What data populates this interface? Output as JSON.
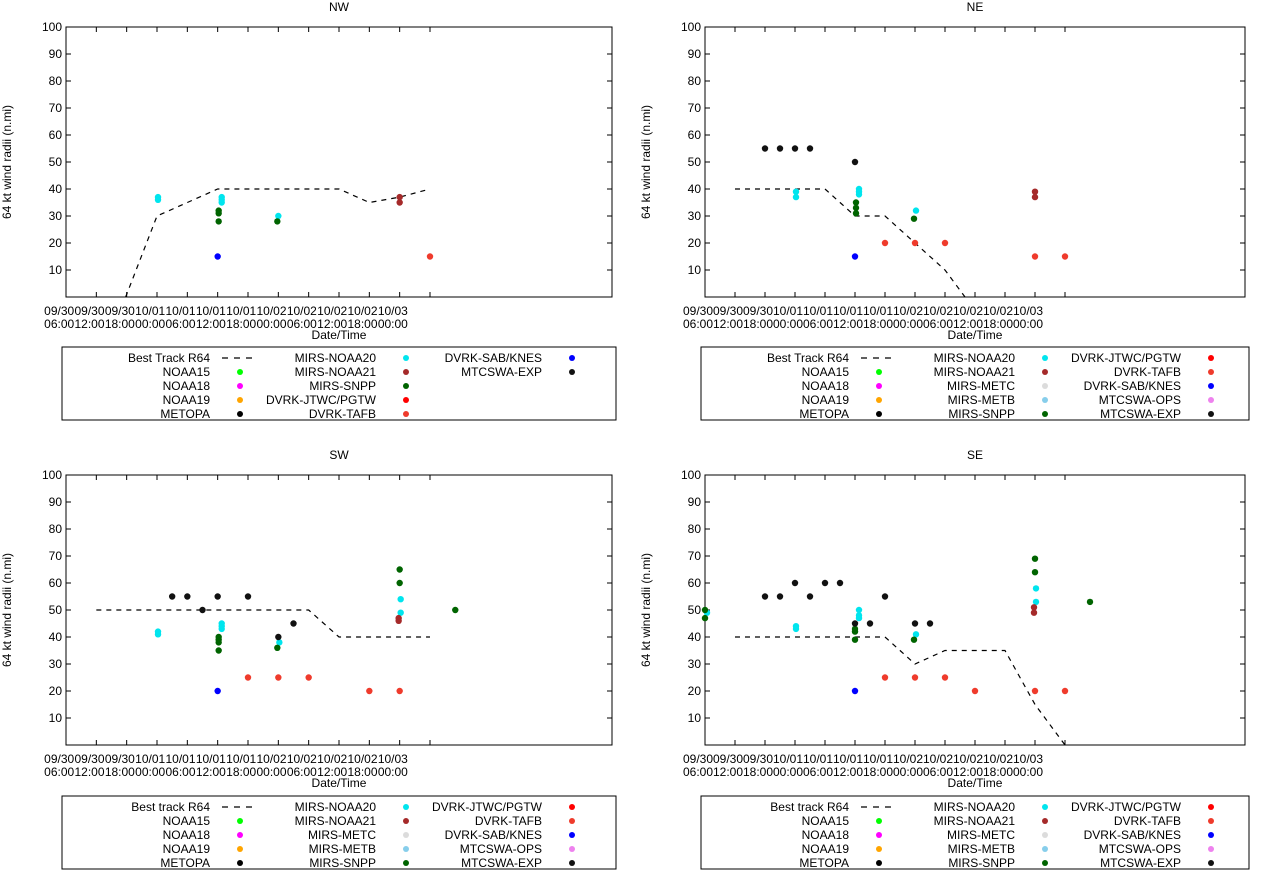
{
  "axes_common": {
    "xlabel": "Date/Time",
    "ylabel": "64 kt wind radii (n.mi)",
    "ylim": [
      0,
      100
    ],
    "yticks": [
      10,
      20,
      30,
      40,
      50,
      60,
      70,
      80,
      90,
      100
    ],
    "xlim_hours": [
      0,
      108
    ],
    "xtick_hours": [
      0,
      6,
      12,
      18,
      24,
      30,
      36,
      42,
      48,
      54,
      60,
      66,
      72
    ],
    "xtick_labels": [
      [
        "09/30",
        "06:00"
      ],
      [
        "09/30",
        "12:00"
      ],
      [
        "09/30",
        "18:00"
      ],
      [
        "10/01",
        "00:00"
      ],
      [
        "10/01",
        "06:00"
      ],
      [
        "10/01",
        "12:00"
      ],
      [
        "10/01",
        "18:00"
      ],
      [
        "10/02",
        "00:00"
      ],
      [
        "10/02",
        "06:00"
      ],
      [
        "10/02",
        "12:00"
      ],
      [
        "10/02",
        "18:00"
      ],
      [
        "10/03",
        "00:00"
      ]
    ]
  },
  "colors": {
    "MIRS-NOAA20": "#00e5ee",
    "MIRS-NOAA21": "#a52a2a",
    "MIRS-SNPP": "#006400",
    "MIRS-METC": "#dcdcdc",
    "MIRS-METB": "#87ceeb",
    "NOAA15": "#00ff00",
    "NOAA18": "#ff00ff",
    "NOAA19": "#ffa500",
    "METOPA": "#000000",
    "DVRK-JTWC/PGTW": "#ff0000",
    "DVRK-TAFB": "#ef3b2c",
    "DVRK-SAB/KNES": "#0000ff",
    "MTCSWA-OPS": "#ee82ee",
    "MTCSWA-EXP": "#111111",
    "best_track": "#000000"
  },
  "chart_data": [
    {
      "type": "scatter",
      "title": "NW",
      "xlabel": "Date/Time",
      "ylabel": "64 kt wind radii (n.mi)",
      "ylim": [
        0,
        100
      ],
      "best_track": {
        "x": [
          11.8,
          18,
          24,
          30,
          36,
          42,
          48,
          54,
          60,
          66,
          72
        ],
        "y": [
          0,
          30,
          35,
          40,
          40,
          40,
          40,
          40,
          35,
          37,
          40
        ]
      },
      "series": [
        {
          "name": "MIRS-NOAA20",
          "x": [
            18.2,
            18.2,
            30.8,
            30.8,
            30.8,
            42.0
          ],
          "y": [
            36,
            37,
            35,
            36,
            37,
            30
          ]
        },
        {
          "name": "MIRS-SNPP",
          "x": [
            30.2,
            30.2,
            30.2,
            41.8
          ],
          "y": [
            31,
            32,
            28,
            28
          ]
        },
        {
          "name": "MIRS-NOAA21",
          "x": [
            66.0,
            66.0
          ],
          "y": [
            35,
            37
          ]
        },
        {
          "name": "DVRK-SAB/KNES",
          "x": [
            30.0
          ],
          "y": [
            15
          ]
        },
        {
          "name": "DVRK-TAFB",
          "x": [
            72.0
          ],
          "y": [
            15
          ]
        }
      ],
      "legend": {
        "col1": [
          {
            "label": "Best Track R64",
            "style": "dash"
          },
          {
            "label": "NOAA15",
            "key": "NOAA15"
          },
          {
            "label": "NOAA18",
            "key": "NOAA18"
          },
          {
            "label": "NOAA19",
            "key": "NOAA19"
          },
          {
            "label": "METOPA",
            "key": "METOPA"
          }
        ],
        "col2": [
          {
            "label": "MIRS-NOAA20",
            "key": "MIRS-NOAA20"
          },
          {
            "label": "MIRS-NOAA21",
            "key": "MIRS-NOAA21"
          },
          {
            "label": "MIRS-SNPP",
            "key": "MIRS-SNPP"
          },
          {
            "label": "DVRK-JTWC/PGTW",
            "key": "DVRK-JTWC/PGTW"
          },
          {
            "label": "DVRK-TAFB",
            "key": "DVRK-TAFB"
          }
        ],
        "col3": [
          {
            "label": "DVRK-SAB/KNES",
            "key": "DVRK-SAB/KNES"
          },
          {
            "label": "MTCSWA-EXP",
            "key": "MTCSWA-EXP"
          }
        ]
      }
    },
    {
      "type": "scatter",
      "title": "NE",
      "xlabel": "Date/Time",
      "ylabel": "64 kt wind radii (n.mi)",
      "ylim": [
        0,
        100
      ],
      "best_track": {
        "x": [
          6,
          12,
          18,
          24,
          30,
          36,
          42,
          48,
          52
        ],
        "y": [
          40,
          40,
          40,
          40,
          30,
          30,
          20,
          10,
          0
        ]
      },
      "series": [
        {
          "name": "MIRS-NOAA20",
          "x": [
            18.2,
            18.2,
            30.8,
            30.8,
            30.8,
            42.2
          ],
          "y": [
            37,
            39,
            38,
            39,
            40,
            32
          ]
        },
        {
          "name": "MIRS-SNPP",
          "x": [
            30.2,
            30.2,
            30.2,
            41.8
          ],
          "y": [
            31,
            33,
            35,
            29
          ]
        },
        {
          "name": "MIRS-NOAA21",
          "x": [
            66.0,
            66.0
          ],
          "y": [
            37,
            39
          ]
        },
        {
          "name": "DVRK-SAB/KNES",
          "x": [
            30.0
          ],
          "y": [
            15
          ]
        },
        {
          "name": "DVRK-TAFB",
          "x": [
            36.0,
            42.0,
            48.0,
            66.0,
            72.0
          ],
          "y": [
            20,
            20,
            20,
            15,
            15
          ]
        },
        {
          "name": "MTCSWA-EXP",
          "x": [
            12.0,
            15.0,
            18.0,
            21.0,
            30.0
          ],
          "y": [
            55,
            55,
            55,
            55,
            50
          ]
        }
      ],
      "legend": {
        "col1": [
          {
            "label": "Best Track R64",
            "style": "dash"
          },
          {
            "label": "NOAA15",
            "key": "NOAA15"
          },
          {
            "label": "NOAA18",
            "key": "NOAA18"
          },
          {
            "label": "NOAA19",
            "key": "NOAA19"
          },
          {
            "label": "METOPA",
            "key": "METOPA"
          }
        ],
        "col2": [
          {
            "label": "MIRS-NOAA20",
            "key": "MIRS-NOAA20"
          },
          {
            "label": "MIRS-NOAA21",
            "key": "MIRS-NOAA21"
          },
          {
            "label": "MIRS-METC",
            "key": "MIRS-METC"
          },
          {
            "label": "MIRS-METB",
            "key": "MIRS-METB"
          },
          {
            "label": "MIRS-SNPP",
            "key": "MIRS-SNPP"
          }
        ],
        "col3": [
          {
            "label": "DVRK-JTWC/PGTW",
            "key": "DVRK-JTWC/PGTW"
          },
          {
            "label": "DVRK-TAFB",
            "key": "DVRK-TAFB"
          },
          {
            "label": "DVRK-SAB/KNES",
            "key": "DVRK-SAB/KNES"
          },
          {
            "label": "MTCSWA-OPS",
            "key": "MTCSWA-OPS"
          },
          {
            "label": "MTCSWA-EXP",
            "key": "MTCSWA-EXP"
          }
        ]
      }
    },
    {
      "type": "scatter",
      "title": "SW",
      "xlabel": "Date/Time",
      "ylabel": "64 kt wind radii (n.mi)",
      "ylim": [
        0,
        100
      ],
      "best_track": {
        "x": [
          6,
          12,
          18,
          24,
          30,
          36,
          42,
          48,
          54,
          60,
          66,
          72
        ],
        "y": [
          50,
          50,
          50,
          50,
          50,
          50,
          50,
          50,
          40,
          40,
          40,
          40
        ]
      },
      "series": [
        {
          "name": "MIRS-NOAA20",
          "x": [
            18.2,
            18.2,
            30.8,
            30.8,
            30.8,
            42.2,
            66.2,
            66.2
          ],
          "y": [
            41,
            42,
            43,
            44,
            45,
            38,
            49,
            54
          ]
        },
        {
          "name": "MIRS-SNPP",
          "x": [
            30.2,
            30.2,
            30.2,
            30.2,
            41.8,
            66.0,
            66.0,
            77.0
          ],
          "y": [
            35,
            38,
            39,
            40,
            36,
            60,
            65,
            50
          ]
        },
        {
          "name": "MIRS-NOAA21",
          "x": [
            65.8,
            65.8
          ],
          "y": [
            46,
            47
          ]
        },
        {
          "name": "DVRK-SAB/KNES",
          "x": [
            30.0
          ],
          "y": [
            20
          ]
        },
        {
          "name": "DVRK-TAFB",
          "x": [
            36.0,
            42.0,
            48.0,
            60.0,
            66.0
          ],
          "y": [
            25,
            25,
            25,
            20,
            20
          ]
        },
        {
          "name": "MTCSWA-EXP",
          "x": [
            21.0,
            24.0,
            27.0,
            30.0,
            36.0,
            42.0,
            45.0
          ],
          "y": [
            55,
            55,
            50,
            55,
            55,
            40,
            45
          ]
        }
      ],
      "legend": {
        "col1": [
          {
            "label": "Best track R64",
            "style": "dash"
          },
          {
            "label": "NOAA15",
            "key": "NOAA15"
          },
          {
            "label": "NOAA18",
            "key": "NOAA18"
          },
          {
            "label": "NOAA19",
            "key": "NOAA19"
          },
          {
            "label": "METOPA",
            "key": "METOPA"
          }
        ],
        "col2": [
          {
            "label": "MIRS-NOAA20",
            "key": "MIRS-NOAA20"
          },
          {
            "label": "MIRS-NOAA21",
            "key": "MIRS-NOAA21"
          },
          {
            "label": "MIRS-METC",
            "key": "MIRS-METC"
          },
          {
            "label": "MIRS-METB",
            "key": "MIRS-METB"
          },
          {
            "label": "MIRS-SNPP",
            "key": "MIRS-SNPP"
          }
        ],
        "col3": [
          {
            "label": "DVRK-JTWC/PGTW",
            "key": "DVRK-JTWC/PGTW"
          },
          {
            "label": "DVRK-TAFB",
            "key": "DVRK-TAFB"
          },
          {
            "label": "DVRK-SAB/KNES",
            "key": "DVRK-SAB/KNES"
          },
          {
            "label": "MTCSWA-OPS",
            "key": "MTCSWA-OPS"
          },
          {
            "label": "MTCSWA-EXP",
            "key": "MTCSWA-EXP"
          }
        ]
      }
    },
    {
      "type": "scatter",
      "title": "SE",
      "xlabel": "Date/Time",
      "ylabel": "64 kt wind radii (n.mi)",
      "ylim": [
        0,
        100
      ],
      "best_track": {
        "x": [
          6,
          12,
          18,
          24,
          30,
          36,
          42,
          48,
          54,
          60,
          66,
          72
        ],
        "y": [
          40,
          40,
          40,
          40,
          40,
          40,
          30,
          35,
          35,
          35,
          15,
          0
        ]
      },
      "series": [
        {
          "name": "MIRS-NOAA20",
          "x": [
            0.4,
            18.2,
            18.2,
            30.8,
            30.8,
            30.8,
            42.2,
            66.2,
            66.2
          ],
          "y": [
            49,
            43,
            44,
            47,
            48,
            50,
            41,
            53,
            58
          ]
        },
        {
          "name": "MIRS-SNPP",
          "x": [
            0.0,
            0.0,
            30.0,
            30.0,
            30.0,
            41.8,
            66.0,
            66.0,
            77.0
          ],
          "y": [
            47,
            50,
            39,
            42,
            43,
            39,
            64,
            69,
            53
          ]
        },
        {
          "name": "MIRS-NOAA21",
          "x": [
            65.8,
            65.8
          ],
          "y": [
            49,
            51
          ]
        },
        {
          "name": "DVRK-SAB/KNES",
          "x": [
            30.0
          ],
          "y": [
            20
          ]
        },
        {
          "name": "DVRK-TAFB",
          "x": [
            36.0,
            42.0,
            48.0,
            54.0,
            66.0,
            72.0
          ],
          "y": [
            25,
            25,
            25,
            20,
            20,
            20
          ]
        },
        {
          "name": "MTCSWA-EXP",
          "x": [
            12.0,
            15.0,
            18.0,
            21.0,
            24.0,
            27.0,
            30.0,
            33.0,
            36.0,
            42.0,
            45.0
          ],
          "y": [
            55,
            55,
            60,
            55,
            60,
            60,
            45,
            45,
            55,
            45,
            45
          ]
        }
      ],
      "legend": {
        "col1": [
          {
            "label": "Best track R64",
            "style": "dash"
          },
          {
            "label": "NOAA15",
            "key": "NOAA15"
          },
          {
            "label": "NOAA18",
            "key": "NOAA18"
          },
          {
            "label": "NOAA19",
            "key": "NOAA19"
          },
          {
            "label": "METOPA",
            "key": "METOPA"
          }
        ],
        "col2": [
          {
            "label": "MIRS-NOAA20",
            "key": "MIRS-NOAA20"
          },
          {
            "label": "MIRS-NOAA21",
            "key": "MIRS-NOAA21"
          },
          {
            "label": "MIRS-METC",
            "key": "MIRS-METC"
          },
          {
            "label": "MIRS-METB",
            "key": "MIRS-METB"
          },
          {
            "label": "MIRS-SNPP",
            "key": "MIRS-SNPP"
          }
        ],
        "col3": [
          {
            "label": "DVRK-JTWC/PGTW",
            "key": "DVRK-JTWC/PGTW"
          },
          {
            "label": "DVRK-TAFB",
            "key": "DVRK-TAFB"
          },
          {
            "label": "DVRK-SAB/KNES",
            "key": "DVRK-SAB/KNES"
          },
          {
            "label": "MTCSWA-OPS",
            "key": "MTCSWA-OPS"
          },
          {
            "label": "MTCSWA-EXP",
            "key": "MTCSWA-EXP"
          }
        ]
      }
    }
  ]
}
